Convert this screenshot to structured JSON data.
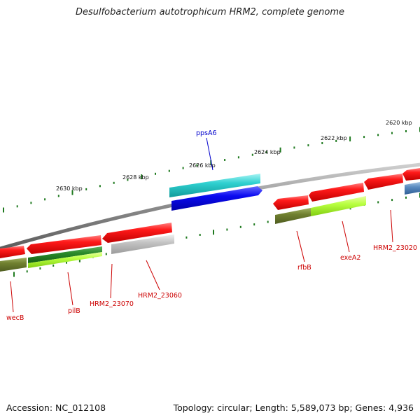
{
  "title": "Desulfobacterium autotrophicum HRM2, complete genome",
  "footer": {
    "accession": "Accession: NC_012108",
    "stats": "Topology: circular; Length: 5,589,073 bp; Genes: 4,936"
  },
  "colors": {
    "backbone": "#808080",
    "tick": "#1f7a1f",
    "label_red": "#cc0000",
    "label_blue": "#0000cc"
  },
  "scale_labels": [
    "2620 kbp",
    "2622 kbp",
    "2624 kbp",
    "2626 kbp",
    "2628 kbp",
    "2630 kbp"
  ],
  "gene_labels": [
    {
      "name": "ppsA6",
      "color": "#0000cc"
    },
    {
      "name": "wecB",
      "color": "#cc0000"
    },
    {
      "name": "pilB",
      "color": "#cc0000"
    },
    {
      "name": "HRM2_23070",
      "color": "#cc0000"
    },
    {
      "name": "HRM2_23060",
      "color": "#cc0000"
    },
    {
      "name": "rfbB",
      "color": "#cc0000"
    },
    {
      "name": "exeA2",
      "color": "#cc0000"
    },
    {
      "name": "HRM2_23020",
      "color": "#cc0000"
    }
  ]
}
